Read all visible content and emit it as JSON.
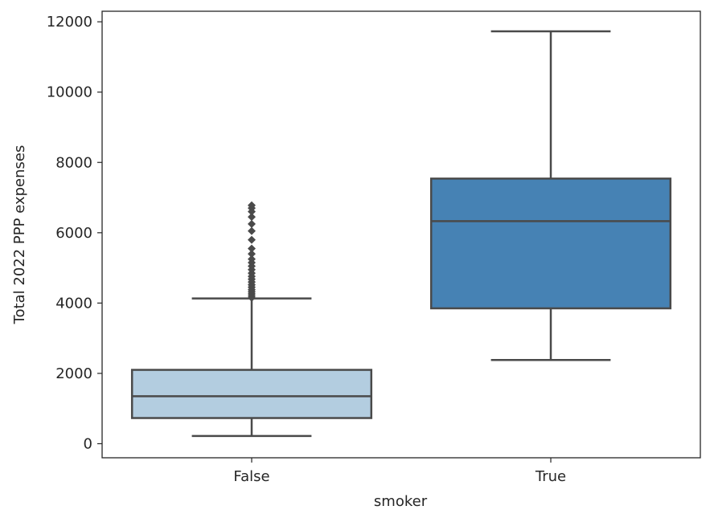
{
  "chart_data": {
    "type": "box",
    "title": "",
    "xlabel": "smoker",
    "ylabel": "Total 2022 PPP expenses",
    "ylim": [
      -400,
      12300
    ],
    "yticks": [
      0,
      2000,
      4000,
      6000,
      8000,
      10000,
      12000
    ],
    "categories": [
      "False",
      "True"
    ],
    "boxes": [
      {
        "category": "False",
        "color": "#b3cde0",
        "whisker_low": 220,
        "q1": 730,
        "median": 1350,
        "q3": 2100,
        "whisker_high": 4130,
        "outliers": [
          4150,
          4200,
          4260,
          4320,
          4380,
          4450,
          4520,
          4600,
          4680,
          4760,
          4850,
          4950,
          5050,
          5150,
          5250,
          5400,
          5550,
          5800,
          6050,
          6250,
          6450,
          6600,
          6700,
          6780
        ]
      },
      {
        "category": "True",
        "color": "#4682b4",
        "whisker_low": 2380,
        "q1": 3850,
        "median": 6330,
        "q3": 7540,
        "whisker_high": 11730,
        "outliers": []
      }
    ]
  }
}
